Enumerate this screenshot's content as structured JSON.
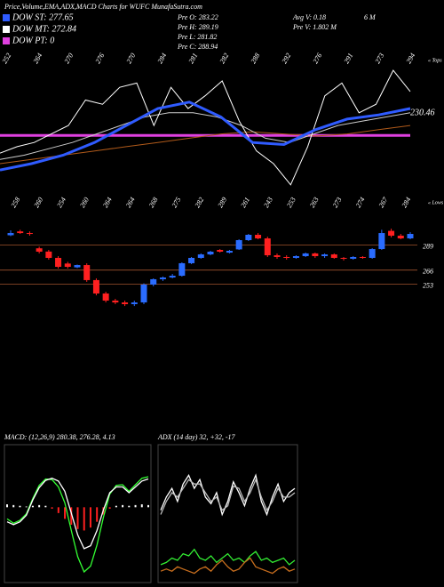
{
  "title": "Price,Volume,EMA,ADX,MACD Charts for WUFC MunafaSutra.com",
  "legend": [
    {
      "label": "DOW ST: 277.65",
      "color": "#2f5bff"
    },
    {
      "label": "DOW MT: 272.84",
      "color": "#ffffff"
    },
    {
      "label": "DOW PT: 0",
      "color": "#e040e0"
    }
  ],
  "info": [
    {
      "text": "Pre O: 283.22",
      "col": 0
    },
    {
      "text": "Pre H: 289.19",
      "col": 0
    },
    {
      "text": "Pre L: 281.82",
      "col": 0
    },
    {
      "text": "Pre C: 288.94",
      "col": 0
    },
    {
      "text": "Avg V: 0.18",
      "col": 1
    },
    {
      "text": "6  M",
      "col": 2
    },
    {
      "text": "Pre  V: 1.802  M",
      "col": 1
    }
  ],
  "top_panel": {
    "type": "line",
    "ylim": [
      195,
      260
    ],
    "tops": [
      252,
      264,
      270,
      276,
      270,
      284,
      281,
      282,
      288,
      292,
      276,
      291,
      273,
      294
    ],
    "tops_label": "« Tops",
    "last_label": "230.46",
    "series": [
      {
        "color": "#e040e0",
        "width": 3,
        "values": [
          221.3,
          221.3
        ]
      },
      {
        "color": "#b05a1a",
        "width": 1,
        "values": [
          208,
          210,
          212,
          214,
          216,
          218,
          220,
          222,
          223,
          222,
          221,
          222,
          224,
          226
        ]
      },
      {
        "color": "#cccccc",
        "width": 1,
        "values": [
          210,
          212,
          215,
          218,
          222,
          226,
          230,
          232,
          232,
          230,
          226,
          220,
          218,
          222,
          226,
          228,
          230,
          232
        ]
      },
      {
        "color": "#ffffff",
        "width": 1,
        "values": [
          213,
          216,
          218,
          222,
          226,
          238,
          236,
          244,
          246,
          226,
          244,
          234,
          240,
          247,
          228,
          214,
          208,
          198,
          216,
          240,
          246,
          232,
          236,
          252,
          242
        ]
      },
      {
        "color": "#2f5bff",
        "width": 3,
        "values": [
          205,
          208,
          212,
          218,
          226,
          234,
          237,
          230,
          218,
          217,
          224,
          229,
          231,
          234
        ]
      }
    ]
  },
  "price_panel": {
    "type": "candlestick",
    "ylim": [
      220,
      318
    ],
    "yticks": [
      289,
      266,
      253
    ],
    "lows": [
      258,
      260,
      254,
      260,
      264,
      264,
      268,
      275,
      282,
      289,
      261,
      243,
      253,
      263,
      273,
      274,
      267,
      284
    ],
    "lows_label": "« Lows",
    "open": [
      298.0,
      301.5,
      300.0,
      286.0,
      283.0,
      277.2,
      272.0,
      268.5,
      270.6,
      256.8,
      244.5,
      238.0,
      236.3,
      234.7,
      236.3,
      252.7,
      257.6,
      259.2,
      260.8,
      272.3,
      277.2,
      280.4,
      284.5,
      282.0,
      285.0,
      293.5,
      298.4,
      295.1,
      279.6,
      278.0,
      277.2,
      278.8,
      281.3,
      278.8,
      280.4,
      277.2,
      276.4,
      278.0,
      277.2,
      285.3,
      302.0,
      297.6,
      295.1
    ],
    "high": [
      302.5,
      303.0,
      301.5,
      287.5,
      284.5,
      278.8,
      273.6,
      271.0,
      272.2,
      258.4,
      246.1,
      239.6,
      238.0,
      237.9,
      253.8,
      258.4,
      260.1,
      262.4,
      273.1,
      278.0,
      281.3,
      283.7,
      285.3,
      284.5,
      294.3,
      299.2,
      300.0,
      296.7,
      281.3,
      279.6,
      279.6,
      282.1,
      282.1,
      281.3,
      281.3,
      278.0,
      278.8,
      278.8,
      286.1,
      303.0,
      304.0,
      299.2,
      300.8
    ],
    "low": [
      297.2,
      299.2,
      297.6,
      281.3,
      275.6,
      267.4,
      267.4,
      267.8,
      255.2,
      242.8,
      236.3,
      234.7,
      233.0,
      233.0,
      234.7,
      251.1,
      256.0,
      258.4,
      260.0,
      271.5,
      276.4,
      279.6,
      282.1,
      281.3,
      284.5,
      292.7,
      294.3,
      278.0,
      276.4,
      275.6,
      276.4,
      278.0,
      277.2,
      277.2,
      276.4,
      274.8,
      275.6,
      276.4,
      276.4,
      284.5,
      296.0,
      294.3,
      294.3
    ],
    "close": [
      300.0,
      300.0,
      299.2,
      282.9,
      277.2,
      269.0,
      269.0,
      270.6,
      256.8,
      244.5,
      238.0,
      236.3,
      234.7,
      236.3,
      252.7,
      257.6,
      259.2,
      260.8,
      272.3,
      277.2,
      280.4,
      282.9,
      282.9,
      283.7,
      293.5,
      298.4,
      295.1,
      279.6,
      278.0,
      277.2,
      278.8,
      281.3,
      278.8,
      280.4,
      277.2,
      276.4,
      278.0,
      277.2,
      285.3,
      300.0,
      297.6,
      295.1,
      299.2
    ]
  },
  "macd": {
    "type": "line",
    "label": "MACD: (12,26,9) 280.38, 276.28, 4.13",
    "ylim": [
      -10,
      8
    ],
    "histogram": [
      0.4,
      0.3,
      0.2,
      0.1,
      0.2,
      0.3,
      0.2,
      -0.2,
      -0.8,
      -1.6,
      -2.4,
      -3.0,
      -3.2,
      -2.8,
      -2.0,
      -1.0,
      -0.2,
      0.2,
      0.3,
      0.2,
      0.3,
      0.4,
      0.3
    ],
    "series": [
      {
        "color": "#33ff33",
        "values": [
          -1.6,
          -2.2,
          -1.8,
          -0.9,
          1.2,
          3.0,
          3.9,
          3.8,
          2.8,
          0.6,
          -3.2,
          -6.8,
          -8.9,
          -8.1,
          -5.2,
          -1.4,
          1.8,
          3.0,
          3.1,
          2.2,
          3.1,
          4.0,
          4.2
        ]
      },
      {
        "color": "#ffffff",
        "values": [
          -2.0,
          -2.4,
          -2.0,
          -1.1,
          1.0,
          2.7,
          3.7,
          4.0,
          3.6,
          2.2,
          -0.8,
          -3.8,
          -5.7,
          -5.3,
          -3.2,
          -0.4,
          2.0,
          2.8,
          2.8,
          2.0,
          2.8,
          3.6,
          3.9
        ]
      }
    ]
  },
  "adx": {
    "type": "line",
    "label": "ADX  (14  day) 32,  +32,  -17",
    "ylim": [
      0,
      60
    ],
    "series": [
      {
        "color": "#ffffff",
        "values": [
          32,
          38,
          42,
          36,
          44,
          48,
          42,
          46,
          38,
          35,
          40,
          30,
          36,
          45,
          40,
          34,
          42,
          48,
          36,
          30,
          38,
          44,
          36,
          40,
          42
        ]
      },
      {
        "color": "#bbbbbb",
        "values": [
          30,
          36,
          40,
          38,
          42,
          46,
          44,
          44,
          40,
          36,
          38,
          32,
          34,
          43,
          42,
          36,
          40,
          46,
          38,
          32,
          36,
          42,
          38,
          38,
          40
        ]
      },
      {
        "color": "#33ee33",
        "values": [
          7,
          8,
          10,
          9,
          12,
          11,
          14,
          10,
          9,
          11,
          8,
          10,
          12,
          9,
          10,
          8,
          11,
          13,
          9,
          10,
          8,
          9,
          10,
          7,
          9
        ]
      },
      {
        "color": "#c86e1e",
        "values": [
          4,
          5,
          4,
          6,
          5,
          4,
          3,
          5,
          6,
          4,
          7,
          9,
          6,
          4,
          5,
          8,
          10,
          6,
          5,
          4,
          3,
          5,
          6,
          4,
          5
        ]
      }
    ]
  }
}
